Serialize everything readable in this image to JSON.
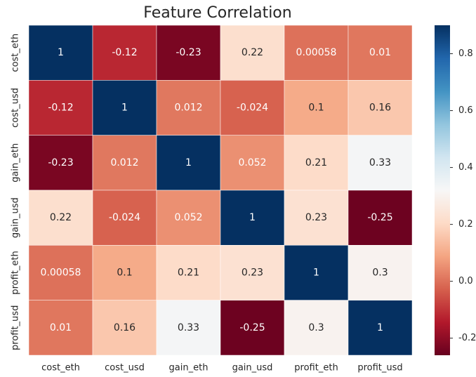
{
  "chart_data": {
    "type": "heatmap",
    "title": "Feature Correlation",
    "x_categories": [
      "cost_eth",
      "cost_usd",
      "gain_eth",
      "gain_usd",
      "profit_eth",
      "profit_usd"
    ],
    "y_categories": [
      "cost_eth",
      "cost_usd",
      "gain_eth",
      "gain_usd",
      "profit_eth",
      "profit_usd"
    ],
    "values": [
      [
        1,
        -0.12,
        -0.23,
        0.22,
        0.00058,
        0.01
      ],
      [
        -0.12,
        1,
        0.012,
        -0.024,
        0.1,
        0.16
      ],
      [
        -0.23,
        0.012,
        1,
        0.052,
        0.21,
        0.33
      ],
      [
        0.22,
        -0.024,
        0.052,
        1,
        0.23,
        -0.25
      ],
      [
        0.00058,
        0.1,
        0.21,
        0.23,
        1,
        0.3
      ],
      [
        0.01,
        0.16,
        0.33,
        -0.25,
        0.3,
        1
      ]
    ],
    "colormap": "RdBu",
    "clim": [
      -0.26,
      0.9
    ],
    "cticks": [
      -0.2,
      {
        "value": 0,
        "label": "0.0"
      },
      0.2,
      0.4,
      0.6,
      0.8
    ]
  }
}
